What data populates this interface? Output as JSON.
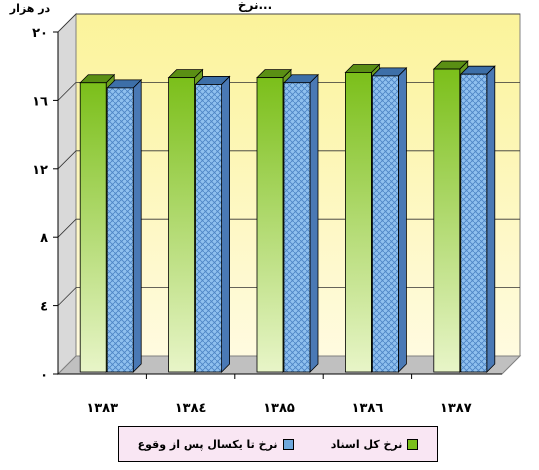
{
  "chart_data": {
    "type": "bar",
    "title": "",
    "title_fragment": "نرخ...",
    "ylabel": "در هزار",
    "categories": [
      "۱۳۸۳",
      "۱۳۸٤",
      "۱۳۸۵",
      "۱۳۸٦",
      "۱۳۸۷"
    ],
    "ylim": [
      0,
      20
    ],
    "yticks": [
      "۰",
      "٤",
      "۸",
      "۱۲",
      "۱٦",
      "۲۰"
    ],
    "ytick_values": [
      0,
      4,
      8,
      12,
      16,
      20
    ],
    "grid": true,
    "legend_position": "bottom",
    "series": [
      {
        "name": "نرخ کل اسناد",
        "values": [
          17.5,
          17.8,
          17.8,
          18.1,
          18.3
        ],
        "color": "#8cc63f"
      },
      {
        "name": "نرخ تا یکسال پس از وقوع",
        "values": [
          17.2,
          17.4,
          17.5,
          17.9,
          18.0
        ],
        "color": "#6fa8dc"
      }
    ]
  }
}
